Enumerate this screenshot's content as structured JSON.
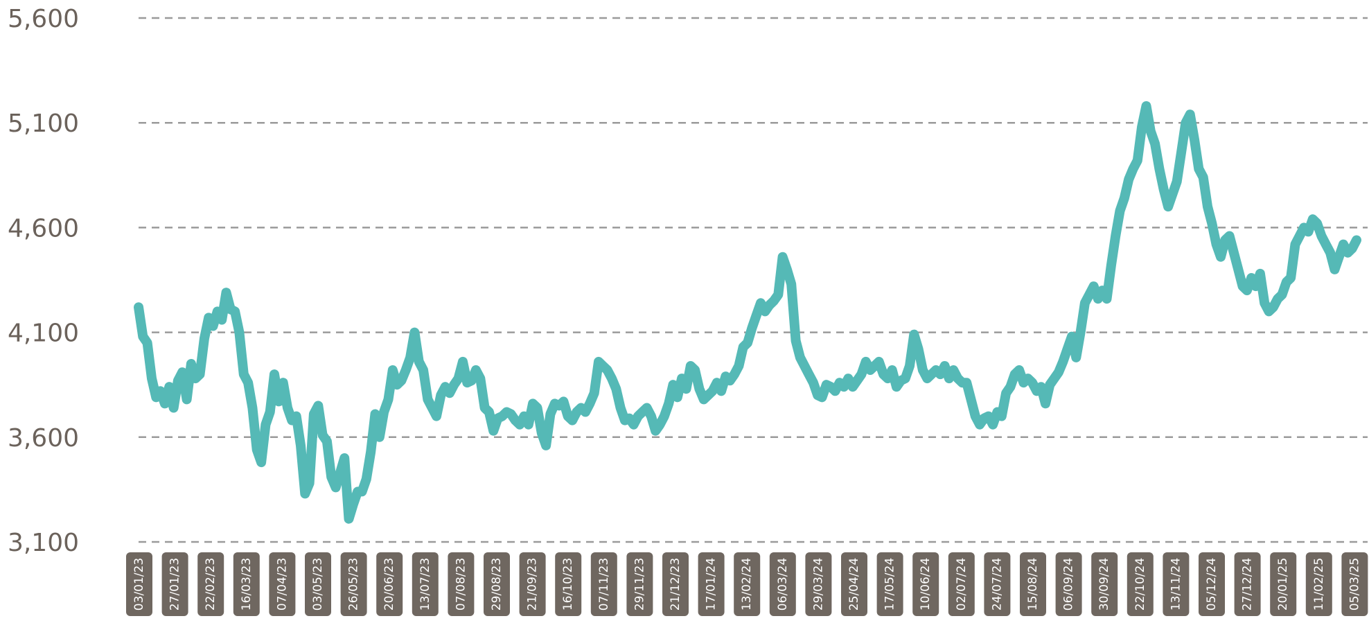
{
  "chart_data": {
    "type": "line",
    "title": "",
    "xlabel": "",
    "ylabel": "",
    "ylim": [
      3100,
      5600
    ],
    "yticks": [
      "5,600",
      "5,100",
      "4,600",
      "4,100",
      "3,600",
      "3,100"
    ],
    "ytick_values": [
      5600,
      5100,
      4600,
      4100,
      3600,
      3100
    ],
    "grid": true,
    "legend": "none",
    "line_color": "#55b9b6",
    "xticks": [
      "03/01/23",
      "27/01/23",
      "22/02/23",
      "16/03/23",
      "07/04/23",
      "03/05/23",
      "26/05/23",
      "20/06/23",
      "13/07/23",
      "07/08/23",
      "29/08/23",
      "21/09/23",
      "16/10/23",
      "07/11/23",
      "29/11/23",
      "21/12/23",
      "17/01/24",
      "13/02/24",
      "06/03/24",
      "29/03/24",
      "25/04/24",
      "17/05/24",
      "10/06/24",
      "02/07/24",
      "24/07/24",
      "15/08/24",
      "06/09/24",
      "30/09/24",
      "22/10/24",
      "13/11/24",
      "05/12/24",
      "27/12/24",
      "20/01/25",
      "11/02/25",
      "05/03/25"
    ],
    "series": [
      {
        "values": [
          4220,
          4080,
          4050,
          3880,
          3790,
          3820,
          3760,
          3840,
          3740,
          3870,
          3910,
          3780,
          3950,
          3880,
          3900,
          4070,
          4170,
          4130,
          4200,
          4160,
          4290,
          4210,
          4200,
          4100,
          3900,
          3860,
          3740,
          3540,
          3480,
          3660,
          3720,
          3900,
          3770,
          3860,
          3740,
          3680,
          3700,
          3560,
          3330,
          3380,
          3710,
          3750,
          3610,
          3580,
          3410,
          3360,
          3430,
          3500,
          3210,
          3280,
          3340,
          3340,
          3400,
          3530,
          3710,
          3600,
          3720,
          3780,
          3920,
          3850,
          3870,
          3920,
          3980,
          4100,
          3960,
          3920,
          3780,
          3740,
          3700,
          3800,
          3840,
          3810,
          3850,
          3880,
          3960,
          3860,
          3870,
          3920,
          3880,
          3740,
          3720,
          3630,
          3690,
          3700,
          3720,
          3710,
          3680,
          3660,
          3700,
          3660,
          3760,
          3740,
          3620,
          3560,
          3710,
          3760,
          3750,
          3770,
          3700,
          3680,
          3720,
          3740,
          3720,
          3760,
          3810,
          3960,
          3940,
          3920,
          3880,
          3830,
          3740,
          3680,
          3690,
          3660,
          3700,
          3720,
          3740,
          3700,
          3630,
          3660,
          3700,
          3760,
          3850,
          3790,
          3880,
          3830,
          3940,
          3920,
          3830,
          3780,
          3800,
          3820,
          3860,
          3820,
          3890,
          3870,
          3900,
          3940,
          4030,
          4050,
          4120,
          4180,
          4240,
          4200,
          4230,
          4250,
          4280,
          4460,
          4400,
          4330,
          4060,
          3980,
          3940,
          3900,
          3860,
          3800,
          3790,
          3850,
          3840,
          3820,
          3860,
          3840,
          3880,
          3840,
          3870,
          3900,
          3960,
          3920,
          3940,
          3960,
          3900,
          3880,
          3920,
          3840,
          3870,
          3880,
          3940,
          4090,
          4020,
          3920,
          3880,
          3900,
          3920,
          3900,
          3940,
          3880,
          3920,
          3880,
          3860,
          3860,
          3780,
          3700,
          3660,
          3690,
          3700,
          3660,
          3720,
          3700,
          3810,
          3840,
          3900,
          3920,
          3860,
          3880,
          3860,
          3820,
          3840,
          3760,
          3850,
          3880,
          3910,
          3960,
          4020,
          4080,
          3980,
          4100,
          4240,
          4280,
          4320,
          4260,
          4300,
          4260,
          4420,
          4560,
          4680,
          4740,
          4830,
          4880,
          4920,
          5080,
          5180,
          5060,
          5000,
          4880,
          4780,
          4700,
          4760,
          4820,
          4960,
          5100,
          5140,
          5020,
          4880,
          4840,
          4700,
          4620,
          4520,
          4460,
          4540,
          4560,
          4480,
          4400,
          4320,
          4300,
          4360,
          4320,
          4380,
          4240,
          4200,
          4220,
          4260,
          4280,
          4340,
          4360,
          4520,
          4560,
          4600,
          4580,
          4640,
          4620,
          4560,
          4520,
          4480,
          4400,
          4460,
          4520,
          4480,
          4500,
          4540
        ]
      }
    ]
  }
}
